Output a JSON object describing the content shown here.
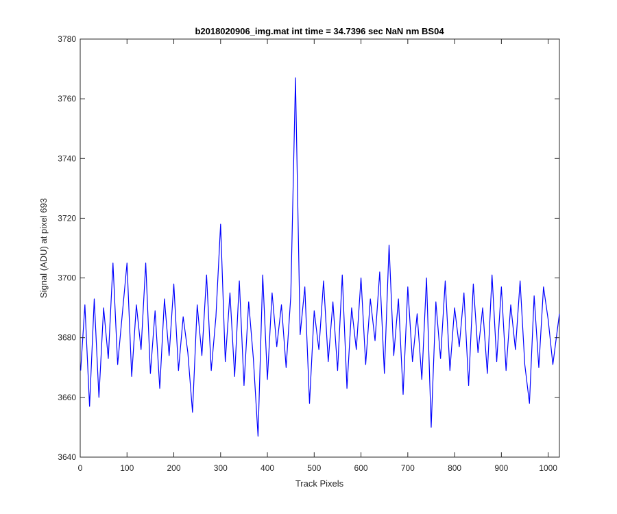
{
  "chart_data": {
    "type": "line",
    "title": "b2018020906_img.mat int time = 34.7396 sec  NaN nm BS04",
    "xlabel": "Track Pixels",
    "ylabel": "Signal (ADU) at pixel 693",
    "xlim": [
      0,
      1024
    ],
    "ylim": [
      3640,
      3780
    ],
    "xticks": [
      0,
      100,
      200,
      300,
      400,
      500,
      600,
      700,
      800,
      900,
      1000
    ],
    "yticks": [
      3640,
      3660,
      3680,
      3700,
      3720,
      3740,
      3760,
      3780
    ],
    "grid": false,
    "line_color": "#0000ff",
    "series": [
      {
        "x": [
          1,
          10,
          20,
          30,
          40,
          50,
          60,
          70,
          80,
          90,
          100,
          110,
          120,
          130,
          140,
          150,
          160,
          170,
          180,
          190,
          200,
          210,
          220,
          230,
          240,
          250,
          260,
          270,
          280,
          290,
          300,
          310,
          320,
          330,
          340,
          350,
          360,
          370,
          380,
          390,
          400,
          410,
          420,
          430,
          440,
          450,
          460,
          470,
          480,
          490,
          500,
          510,
          520,
          530,
          540,
          550,
          560,
          570,
          580,
          590,
          600,
          610,
          620,
          630,
          640,
          650,
          660,
          670,
          680,
          690,
          700,
          710,
          720,
          730,
          740,
          750,
          760,
          770,
          780,
          790,
          800,
          810,
          820,
          830,
          840,
          850,
          860,
          870,
          880,
          890,
          900,
          910,
          920,
          930,
          940,
          950,
          960,
          970,
          980,
          990,
          1000,
          1010,
          1024
        ],
        "y": [
          3669,
          3691,
          3657,
          3693,
          3660,
          3690,
          3673,
          3705,
          3671,
          3688,
          3705,
          3667,
          3691,
          3676,
          3705,
          3668,
          3689,
          3663,
          3693,
          3674,
          3698,
          3669,
          3687,
          3675,
          3655,
          3691,
          3674,
          3701,
          3669,
          3687,
          3718,
          3672,
          3695,
          3667,
          3699,
          3664,
          3692,
          3673,
          3647,
          3701,
          3666,
          3695,
          3677,
          3691,
          3670,
          3694,
          3767,
          3681,
          3697,
          3658,
          3689,
          3676,
          3699,
          3672,
          3692,
          3669,
          3701,
          3663,
          3690,
          3676,
          3700,
          3671,
          3693,
          3679,
          3702,
          3668,
          3711,
          3674,
          3693,
          3661,
          3697,
          3672,
          3688,
          3666,
          3700,
          3650,
          3692,
          3673,
          3699,
          3669,
          3690,
          3677,
          3695,
          3664,
          3698,
          3675,
          3690,
          3668,
          3701,
          3672,
          3697,
          3669,
          3691,
          3676,
          3699,
          3671,
          3658,
          3694,
          3670,
          3697,
          3686,
          3671,
          3688
        ]
      }
    ]
  }
}
